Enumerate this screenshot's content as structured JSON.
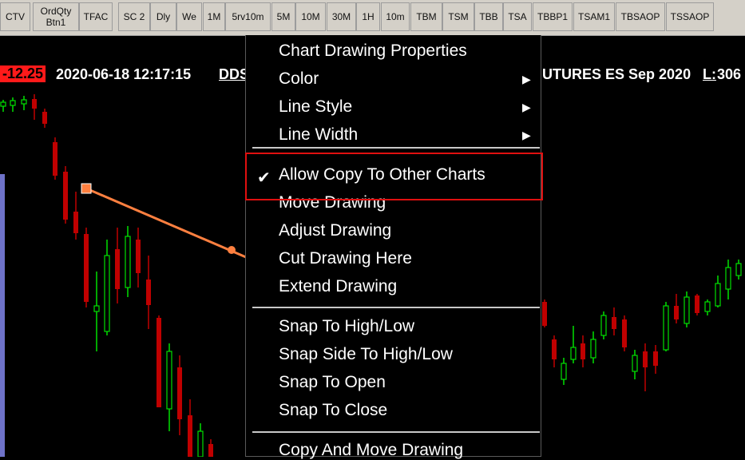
{
  "toolbar": {
    "buttons": [
      "CTV",
      "OrdQty\nBtn1",
      "TFAC",
      "SC 2",
      "Dly",
      "We",
      "1M",
      "5rv10m",
      "5M",
      "10M",
      "30M",
      "1H",
      "10m",
      "TBM",
      "TSM",
      "TBB",
      "TSA",
      "TBBP1",
      "TSAM1",
      "TBSAOP",
      "TSSAOP"
    ]
  },
  "infobar": {
    "change": "-12.25",
    "datetime": "2020-06-18 12:17:15",
    "dd_label": "DDS",
    "symbol": "UTURES ES Sep 2020",
    "last_label": "L:",
    "last_value": "306"
  },
  "menu": {
    "items": [
      {
        "label": "Chart Drawing Properties"
      },
      {
        "label": "Color",
        "submenu": true
      },
      {
        "label": "Line Style",
        "submenu": true
      },
      {
        "label": "Line Width",
        "submenu": true
      },
      {
        "label": "Allow Copy To Other Charts",
        "checked": true
      },
      {
        "label": "Move Drawing"
      },
      {
        "label": "Adjust Drawing"
      },
      {
        "label": "Cut Drawing Here"
      },
      {
        "label": "Extend Drawing"
      },
      {
        "label": "Snap To High/Low"
      },
      {
        "label": "Snap Side To High/Low"
      },
      {
        "label": "Snap To Open"
      },
      {
        "label": "Snap To Close"
      },
      {
        "label": "Copy And Move Drawing"
      }
    ],
    "highlight_color": "#e01010",
    "check_icon": "checkmark-icon",
    "submenu_icon": "triangle-right-icon"
  },
  "colors": {
    "up_candle": "#00e000",
    "down_candle": "#c00000",
    "drawing_line": "#ff8040",
    "background": "#000000"
  }
}
